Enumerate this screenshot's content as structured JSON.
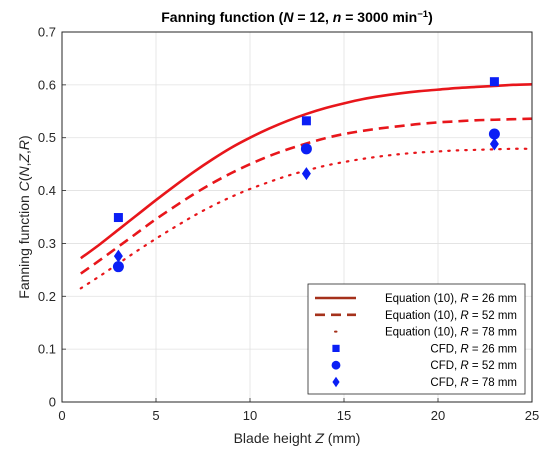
{
  "chart_data": {
    "type": "line",
    "title": {
      "segments": [
        {
          "text": "Fanning function (",
          "italic": false,
          "sup": false
        },
        {
          "text": "N",
          "italic": true,
          "sup": false
        },
        {
          "text": " = 12, ",
          "italic": false,
          "sup": false
        },
        {
          "text": "n",
          "italic": true,
          "sup": false
        },
        {
          "text": " = 3000 min",
          "italic": false,
          "sup": false
        },
        {
          "text": "−1",
          "italic": false,
          "sup": true
        },
        {
          "text": ")",
          "italic": false,
          "sup": false
        }
      ]
    },
    "xlabel": {
      "segments": [
        {
          "text": "Blade height ",
          "italic": false
        },
        {
          "text": "Z",
          "italic": true
        },
        {
          "text": " (mm)",
          "italic": false
        }
      ]
    },
    "ylabel": {
      "segments": [
        {
          "text": "Fanning function ",
          "italic": false
        },
        {
          "text": "C",
          "italic": true
        },
        {
          "text": "(",
          "italic": false
        },
        {
          "text": "N",
          "italic": true
        },
        {
          "text": ",",
          "italic": false
        },
        {
          "text": "Z",
          "italic": true
        },
        {
          "text": ",",
          "italic": false
        },
        {
          "text": "R",
          "italic": true
        },
        {
          "text": ")",
          "italic": false
        }
      ]
    },
    "xlim": [
      0,
      25
    ],
    "ylim": [
      0,
      0.7
    ],
    "xticks": [
      "0",
      "5",
      "10",
      "15",
      "20",
      "25"
    ],
    "yticks": [
      "0",
      "0.1",
      "0.2",
      "0.3",
      "0.4",
      "0.5",
      "0.6",
      "0.7"
    ],
    "grid": true,
    "legend_position": "bottom-right",
    "series": [
      {
        "name": "Equation (10), R = 26 mm",
        "legend_segments": [
          {
            "text": "Equation (10), ",
            "italic": false
          },
          {
            "text": "R",
            "italic": true
          },
          {
            "text": " = 26 mm",
            "italic": false
          }
        ],
        "kind": "line",
        "style": "solid",
        "color": "#e8161b",
        "legend_color": "#a5311b",
        "x": [
          1,
          2,
          3,
          4,
          5,
          6,
          7,
          8,
          9,
          10,
          11,
          12,
          13,
          14,
          15,
          16,
          17,
          18,
          19,
          20,
          21,
          22,
          23,
          24,
          25
        ],
        "y": [
          0.272,
          0.298,
          0.326,
          0.354,
          0.382,
          0.409,
          0.435,
          0.459,
          0.481,
          0.5,
          0.517,
          0.532,
          0.545,
          0.556,
          0.565,
          0.573,
          0.579,
          0.584,
          0.588,
          0.591,
          0.594,
          0.596,
          0.598,
          0.6,
          0.601
        ]
      },
      {
        "name": "Equation (10), R = 52 mm",
        "legend_segments": [
          {
            "text": "Equation (10), ",
            "italic": false
          },
          {
            "text": "R",
            "italic": true
          },
          {
            "text": " = 52 mm",
            "italic": false
          }
        ],
        "kind": "line",
        "style": "dashed",
        "color": "#e8161b",
        "legend_color": "#a5311b",
        "x": [
          1,
          2,
          3,
          4,
          5,
          6,
          7,
          8,
          9,
          10,
          11,
          12,
          13,
          14,
          15,
          16,
          17,
          18,
          19,
          20,
          21,
          22,
          23,
          24,
          25
        ],
        "y": [
          0.243,
          0.268,
          0.294,
          0.32,
          0.346,
          0.37,
          0.393,
          0.414,
          0.433,
          0.45,
          0.465,
          0.478,
          0.489,
          0.499,
          0.507,
          0.513,
          0.518,
          0.522,
          0.526,
          0.529,
          0.531,
          0.533,
          0.534,
          0.535,
          0.536
        ]
      },
      {
        "name": "Equation (10), R = 78 mm",
        "legend_segments": [
          {
            "text": "Equation (10), ",
            "italic": false
          },
          {
            "text": "R",
            "italic": true
          },
          {
            "text": " = 78 mm",
            "italic": false
          }
        ],
        "kind": "line",
        "style": "dotted",
        "color": "#e8161b",
        "legend_color": "#a5311b",
        "x": [
          1,
          2,
          3,
          4,
          5,
          6,
          7,
          8,
          9,
          10,
          11,
          12,
          13,
          14,
          15,
          16,
          17,
          18,
          19,
          20,
          21,
          22,
          23,
          24,
          25
        ],
        "y": [
          0.215,
          0.238,
          0.262,
          0.286,
          0.309,
          0.331,
          0.352,
          0.371,
          0.388,
          0.403,
          0.416,
          0.428,
          0.438,
          0.447,
          0.454,
          0.46,
          0.465,
          0.469,
          0.472,
          0.474,
          0.476,
          0.477,
          0.478,
          0.479,
          0.479
        ]
      },
      {
        "name": "CFD, R = 26 mm",
        "legend_segments": [
          {
            "text": "CFD, ",
            "italic": false
          },
          {
            "text": "R",
            "italic": true
          },
          {
            "text": " = 26 mm",
            "italic": false
          }
        ],
        "kind": "marker",
        "marker": "square",
        "color": "#0b1ff5",
        "x": [
          3,
          13,
          23
        ],
        "y": [
          0.349,
          0.532,
          0.606
        ]
      },
      {
        "name": "CFD, R = 52 mm",
        "legend_segments": [
          {
            "text": "CFD, ",
            "italic": false
          },
          {
            "text": "R",
            "italic": true
          },
          {
            "text": " = 52 mm",
            "italic": false
          }
        ],
        "kind": "marker",
        "marker": "circle",
        "color": "#0b1ff5",
        "x": [
          3,
          13,
          23
        ],
        "y": [
          0.256,
          0.479,
          0.507
        ]
      },
      {
        "name": "CFD, R = 78 mm",
        "legend_segments": [
          {
            "text": "CFD, ",
            "italic": false
          },
          {
            "text": "R",
            "italic": true
          },
          {
            "text": " = 78 mm",
            "italic": false
          }
        ],
        "kind": "marker",
        "marker": "diamond",
        "color": "#0b1ff5",
        "x": [
          3,
          13,
          23
        ],
        "y": [
          0.276,
          0.432,
          0.488
        ]
      }
    ]
  }
}
